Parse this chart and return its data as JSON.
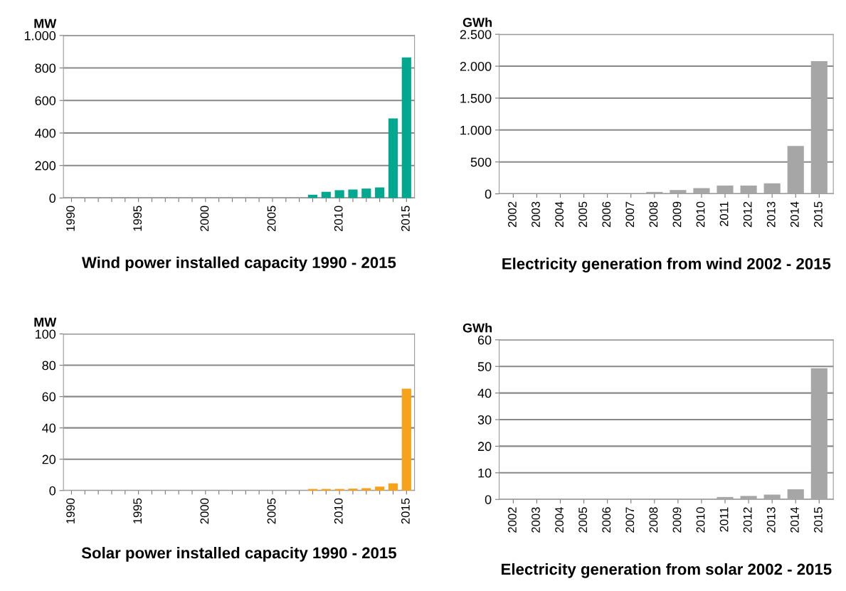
{
  "chart_data": [
    {
      "type": "bar",
      "title": "Wind power installed capacity 1990 - 2015",
      "ylabel": "MW",
      "categories": [
        "1990",
        null,
        null,
        null,
        null,
        "1995",
        null,
        null,
        null,
        null,
        "2000",
        null,
        null,
        null,
        null,
        "2005",
        null,
        null,
        null,
        null,
        "2010",
        null,
        null,
        null,
        null,
        "2015"
      ],
      "values": [
        0,
        0,
        0,
        0,
        0,
        0,
        0,
        0,
        0,
        0,
        0,
        0,
        0,
        0,
        0,
        0,
        0,
        0,
        20,
        38,
        48,
        52,
        58,
        65,
        490,
        865
      ],
      "color": "#00a88f",
      "ylim": [
        0,
        1000
      ],
      "yticks": [
        {
          "value": 0,
          "label": "0"
        },
        {
          "value": 200,
          "label": "200"
        },
        {
          "value": 400,
          "label": "400"
        },
        {
          "value": 600,
          "label": "600"
        },
        {
          "value": 800,
          "label": "800"
        },
        {
          "value": 1000,
          "label": "1.000"
        }
      ],
      "grid": "y"
    },
    {
      "type": "bar",
      "title": "Electricity generation from wind 2002 - 2015",
      "ylabel": "GWh",
      "categories": [
        "2002",
        "2003",
        "2004",
        "2005",
        "2006",
        "2007",
        "2008",
        "2009",
        "2010",
        "2011",
        "2012",
        "2013",
        "2014",
        "2015"
      ],
      "values": [
        0,
        0,
        0,
        0,
        0,
        0,
        30,
        60,
        90,
        130,
        130,
        165,
        750,
        2080
      ],
      "color": "#a6a6a6",
      "ylim": [
        0,
        2500
      ],
      "yticks": [
        {
          "value": 0,
          "label": "0"
        },
        {
          "value": 500,
          "label": "500"
        },
        {
          "value": 1000,
          "label": "1.000"
        },
        {
          "value": 1500,
          "label": "1.500"
        },
        {
          "value": 2000,
          "label": "2.000"
        },
        {
          "value": 2500,
          "label": "2.500"
        }
      ],
      "grid": "y"
    },
    {
      "type": "bar",
      "title": "Solar power installed capacity 1990 - 2015",
      "ylabel": "MW",
      "categories": [
        "1990",
        null,
        null,
        null,
        null,
        "1995",
        null,
        null,
        null,
        null,
        "2000",
        null,
        null,
        null,
        null,
        "2005",
        null,
        null,
        null,
        null,
        "2010",
        null,
        null,
        null,
        null,
        "2015"
      ],
      "values": [
        0,
        0,
        0,
        0,
        0,
        0,
        0,
        0,
        0,
        0,
        0,
        0,
        0,
        0,
        0,
        0,
        0,
        0,
        1,
        1,
        1,
        1.2,
        1.5,
        2.5,
        4.6,
        65
      ],
      "color": "#f7a21b",
      "ylim": [
        0,
        100
      ],
      "yticks": [
        0,
        20,
        40,
        60,
        80,
        100
      ],
      "grid": "y"
    },
    {
      "type": "bar",
      "title": "Electricity generation from solar 2002 - 2015",
      "ylabel": "GWh",
      "categories": [
        "2002",
        "2003",
        "2004",
        "2005",
        "2006",
        "2007",
        "2008",
        "2009",
        "2010",
        "2011",
        "2012",
        "2013",
        "2014",
        "2015"
      ],
      "values": [
        0,
        0,
        0,
        0,
        0,
        0,
        0,
        0,
        0,
        0.9,
        1.3,
        1.8,
        3.8,
        49.3
      ],
      "color": "#a6a6a6",
      "ylim": [
        0,
        60
      ],
      "yticks": [
        0,
        10,
        20,
        30,
        40,
        50,
        60
      ],
      "grid": "y"
    }
  ]
}
